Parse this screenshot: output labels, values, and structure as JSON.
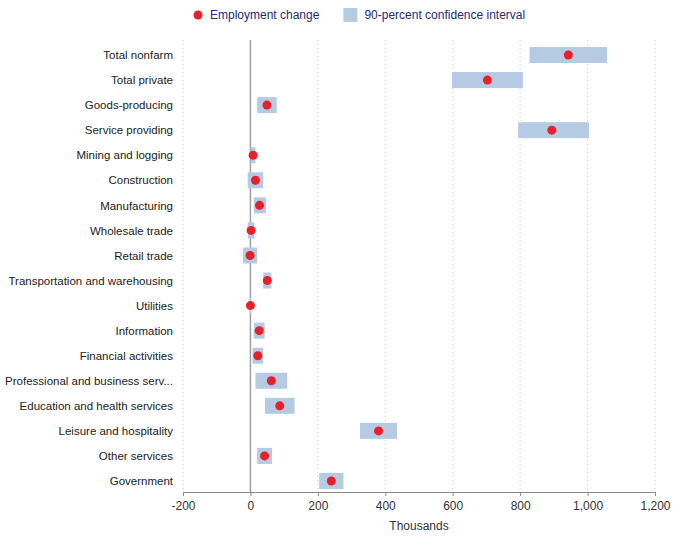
{
  "chart_data": {
    "type": "dot_range",
    "orientation": "horizontal",
    "grid": true,
    "legend": "top",
    "x_label": "Thousands",
    "categories": [
      "Total nonfarm",
      "Total private",
      "Goods-producing",
      "Service providing",
      "Mining and logging",
      "Construction",
      "Manufacturing",
      "Wholesale trade",
      "Retail trade",
      "Transportation and warehousing",
      "Utilities",
      "Information",
      "Financial activities",
      "Professional and business serv...",
      "Education and health services",
      "Leisure and hospitality",
      "Other services",
      "Government"
    ],
    "series": [
      {
        "name": "Employment change",
        "color": "#e8202a",
        "marker": "circle",
        "values": [
          943,
          703,
          49,
          894,
          8,
          15,
          27,
          2,
          -1,
          50,
          0,
          26,
          22,
          62,
          87,
          380,
          42,
          240
        ]
      },
      {
        "name": "90-percent confidence interval",
        "color": "#b4cbe3",
        "type": "range",
        "low": [
          828,
          598,
          20,
          794,
          1,
          -8,
          10,
          -8,
          -22,
          38,
          -2,
          10,
          6,
          15,
          43,
          325,
          20,
          204
        ],
        "high": [
          1058,
          808,
          78,
          1004,
          15,
          38,
          46,
          12,
          20,
          62,
          2,
          42,
          38,
          109,
          131,
          435,
          64,
          276
        ]
      }
    ],
    "xlim": [
      -200,
      1200
    ],
    "xticks": [
      -200,
      0,
      200,
      400,
      600,
      800,
      {
        "value": 1000,
        "label": "1,000"
      },
      {
        "value": 1200,
        "label": "1,200"
      }
    ]
  }
}
